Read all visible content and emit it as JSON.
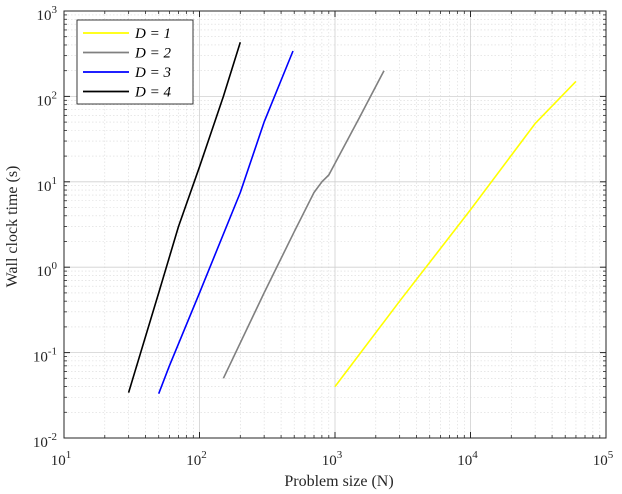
{
  "chart_data": {
    "type": "line",
    "xscale": "log",
    "yscale": "log",
    "xlim": [
      10,
      100000
    ],
    "ylim": [
      0.01,
      1000
    ],
    "grid": true,
    "minor_grid": true,
    "xlabel": "Problem size (N)",
    "ylabel": "Wall clock time (s)",
    "x_ticks": [
      {
        "value": 10,
        "base": "10",
        "exp": "1"
      },
      {
        "value": 100,
        "base": "10",
        "exp": "2"
      },
      {
        "value": 1000,
        "base": "10",
        "exp": "3"
      },
      {
        "value": 10000,
        "base": "10",
        "exp": "4"
      },
      {
        "value": 100000,
        "base": "10",
        "exp": "5"
      }
    ],
    "y_ticks": [
      {
        "value": 0.01,
        "base": "10",
        "exp": "-2"
      },
      {
        "value": 0.1,
        "base": "10",
        "exp": "-1"
      },
      {
        "value": 1,
        "base": "10",
        "exp": "0"
      },
      {
        "value": 10,
        "base": "10",
        "exp": "1"
      },
      {
        "value": 100,
        "base": "10",
        "exp": "2"
      },
      {
        "value": 1000,
        "base": "10",
        "exp": "3"
      }
    ],
    "legend_position": "top-left",
    "series": [
      {
        "name": "D = 1",
        "color": "#ffff00",
        "x": [
          1000,
          3000,
          10000,
          30000,
          60000
        ],
        "y": [
          0.04,
          0.4,
          4.7,
          48,
          150
        ]
      },
      {
        "name": "D = 2",
        "color": "#808080",
        "x": [
          150,
          300,
          500,
          700,
          800,
          900,
          1500,
          2300
        ],
        "y": [
          0.05,
          0.5,
          2.6,
          7.5,
          10,
          12,
          55,
          200
        ]
      },
      {
        "name": "D = 3",
        "color": "#0000ff",
        "x": [
          50,
          60,
          100,
          200,
          300,
          490
        ],
        "y": [
          0.033,
          0.07,
          0.5,
          7.5,
          50,
          340
        ]
      },
      {
        "name": "D = 4",
        "color": "#000000",
        "x": [
          30,
          50,
          70,
          100,
          150,
          200
        ],
        "y": [
          0.034,
          0.5,
          3.0,
          15,
          100,
          430
        ]
      }
    ]
  }
}
